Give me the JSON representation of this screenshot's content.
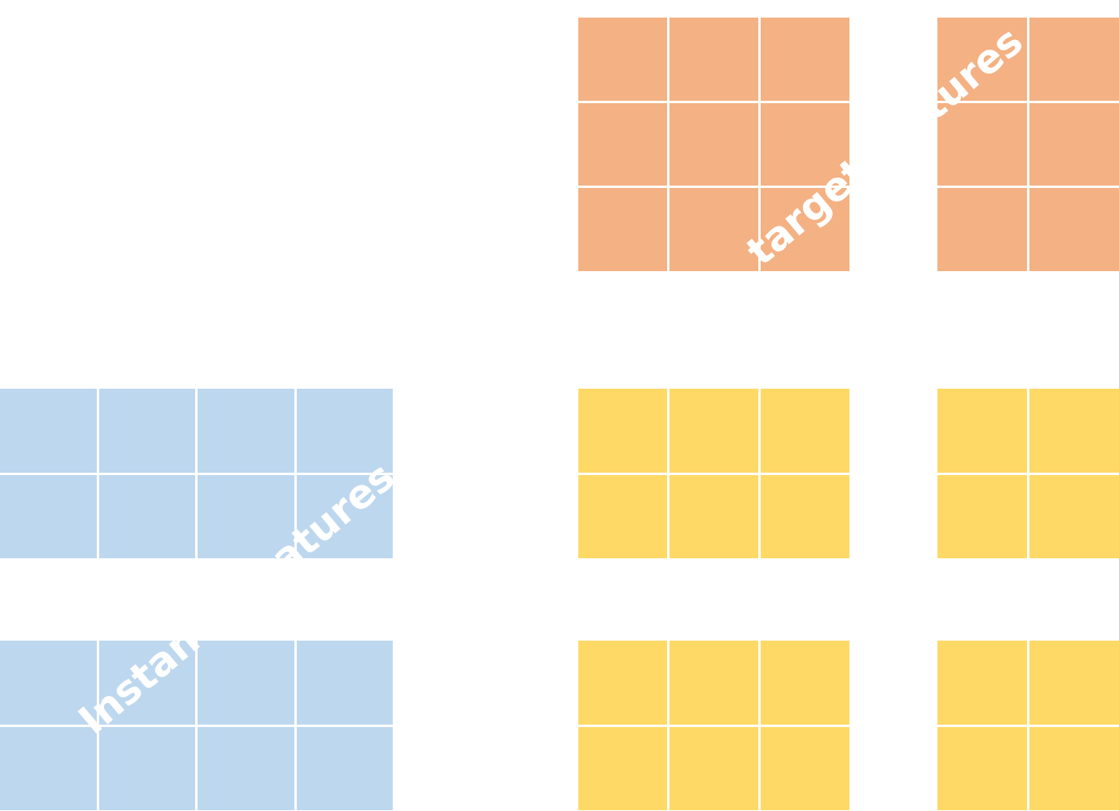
{
  "colors": {
    "target": "#f4b183",
    "instance": "#bdd7ee",
    "yellow": "#ffd966",
    "gridline": "#ffffff",
    "label": "#ffffff"
  },
  "labels": {
    "target": "target features",
    "instance": "Instance features"
  },
  "grids": [
    {
      "id": "g-target-1",
      "name": "target-features-grid-1",
      "color": "target",
      "rows": 3,
      "cols": 3
    },
    {
      "id": "g-target-2",
      "name": "target-features-grid-2",
      "color": "target",
      "rows": 3,
      "cols": 2
    },
    {
      "id": "g-inst-1",
      "name": "instance-features-grid-1",
      "color": "instance",
      "rows": 2,
      "cols": 4
    },
    {
      "id": "g-inst-2",
      "name": "instance-features-grid-2",
      "color": "instance",
      "rows": 2,
      "cols": 4
    },
    {
      "id": "g-yel-1",
      "name": "yellow-grid-1",
      "color": "yellow",
      "rows": 2,
      "cols": 3
    },
    {
      "id": "g-yel-2",
      "name": "yellow-grid-2",
      "color": "yellow",
      "rows": 2,
      "cols": 2
    },
    {
      "id": "g-yel-3",
      "name": "yellow-grid-3",
      "color": "yellow",
      "rows": 2,
      "cols": 3
    },
    {
      "id": "g-yel-4",
      "name": "yellow-grid-4",
      "color": "yellow",
      "rows": 2,
      "cols": 2
    }
  ]
}
